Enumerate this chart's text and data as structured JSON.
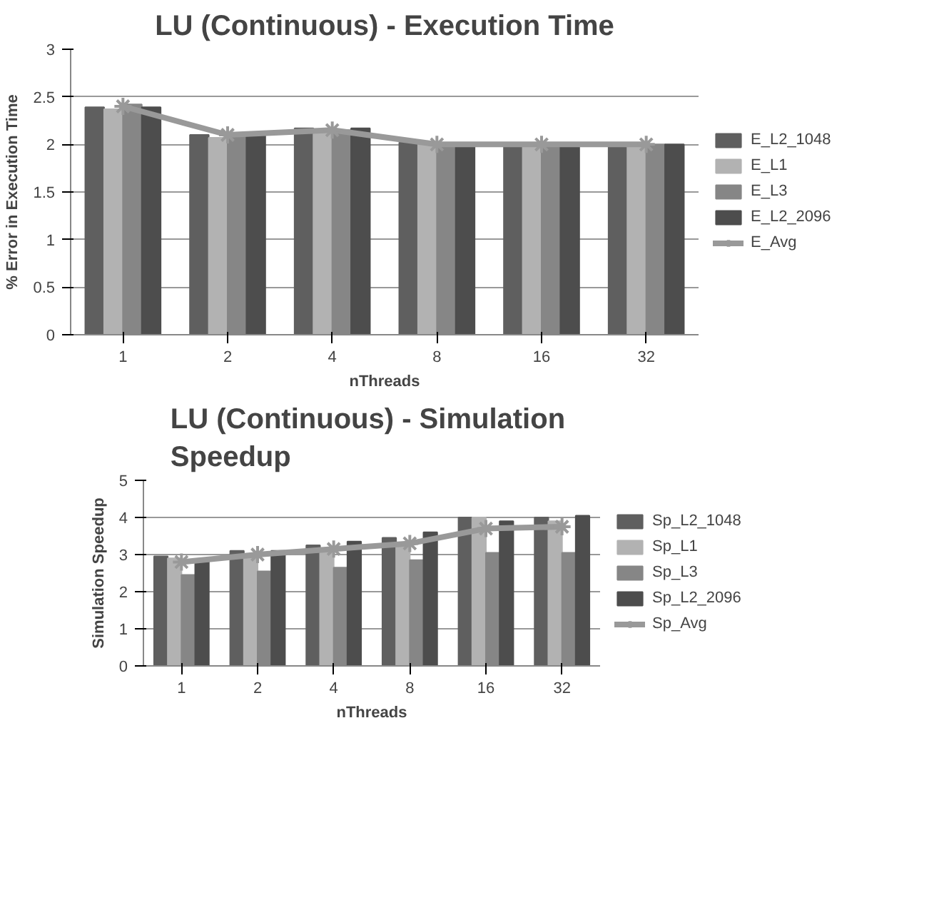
{
  "chart_data": [
    {
      "type": "bar",
      "title": "LU (Continuous) - Execution Time",
      "xlabel": "nThreads",
      "ylabel": "% Error in Execution Time",
      "categories": [
        "1",
        "2",
        "4",
        "8",
        "16",
        "32"
      ],
      "ylim": [
        0,
        3
      ],
      "yticks": [
        0,
        0.5,
        1,
        1.5,
        2,
        2.5,
        3
      ],
      "grid": "y",
      "legend": "right",
      "marker": "cross",
      "series": [
        {
          "name": "E_L2_1048",
          "color": "#5f5f5f",
          "values": [
            2.39,
            2.1,
            2.17,
            2.02,
            1.99,
            1.99
          ]
        },
        {
          "name": "E_L1",
          "color": "#b2b2b2",
          "values": [
            2.37,
            2.07,
            2.15,
            2.0,
            2.0,
            2.0
          ]
        },
        {
          "name": "E_L3",
          "color": "#868686",
          "values": [
            2.42,
            2.1,
            2.15,
            2.0,
            2.0,
            2.0
          ]
        },
        {
          "name": "E_L2_2096",
          "color": "#4d4d4d",
          "values": [
            2.39,
            2.09,
            2.17,
            1.98,
            1.98,
            2.0
          ]
        },
        {
          "name": "E_Avg",
          "color": "#999999",
          "type": "line",
          "values": [
            2.4,
            2.1,
            2.15,
            2.0,
            2.0,
            2.0
          ]
        }
      ]
    },
    {
      "type": "bar",
      "title": "LU (Continuous) -  Simulation Speedup",
      "xlabel": "nThreads",
      "ylabel": "Simulation Speedup",
      "categories": [
        "1",
        "2",
        "4",
        "8",
        "16",
        "32"
      ],
      "ylim": [
        0,
        5
      ],
      "yticks": [
        0,
        1,
        2,
        3,
        4,
        5
      ],
      "grid": "y",
      "legend": "right",
      "marker": "cross",
      "series": [
        {
          "name": "Sp_L2_1048",
          "color": "#5f5f5f",
          "values": [
            2.95,
            3.1,
            3.25,
            3.45,
            4.0,
            4.0
          ]
        },
        {
          "name": "Sp_L1",
          "color": "#b2b2b2",
          "values": [
            2.9,
            2.95,
            3.15,
            3.3,
            4.0,
            3.9
          ]
        },
        {
          "name": "Sp_L3",
          "color": "#868686",
          "values": [
            2.45,
            2.55,
            2.65,
            2.85,
            3.05,
            3.05
          ]
        },
        {
          "name": "Sp_L2_2096",
          "color": "#4d4d4d",
          "values": [
            2.85,
            3.1,
            3.35,
            3.6,
            3.9,
            4.05
          ]
        },
        {
          "name": "Sp_Avg",
          "color": "#999999",
          "type": "line",
          "values": [
            2.8,
            3.0,
            3.15,
            3.3,
            3.7,
            3.75
          ]
        }
      ]
    }
  ]
}
